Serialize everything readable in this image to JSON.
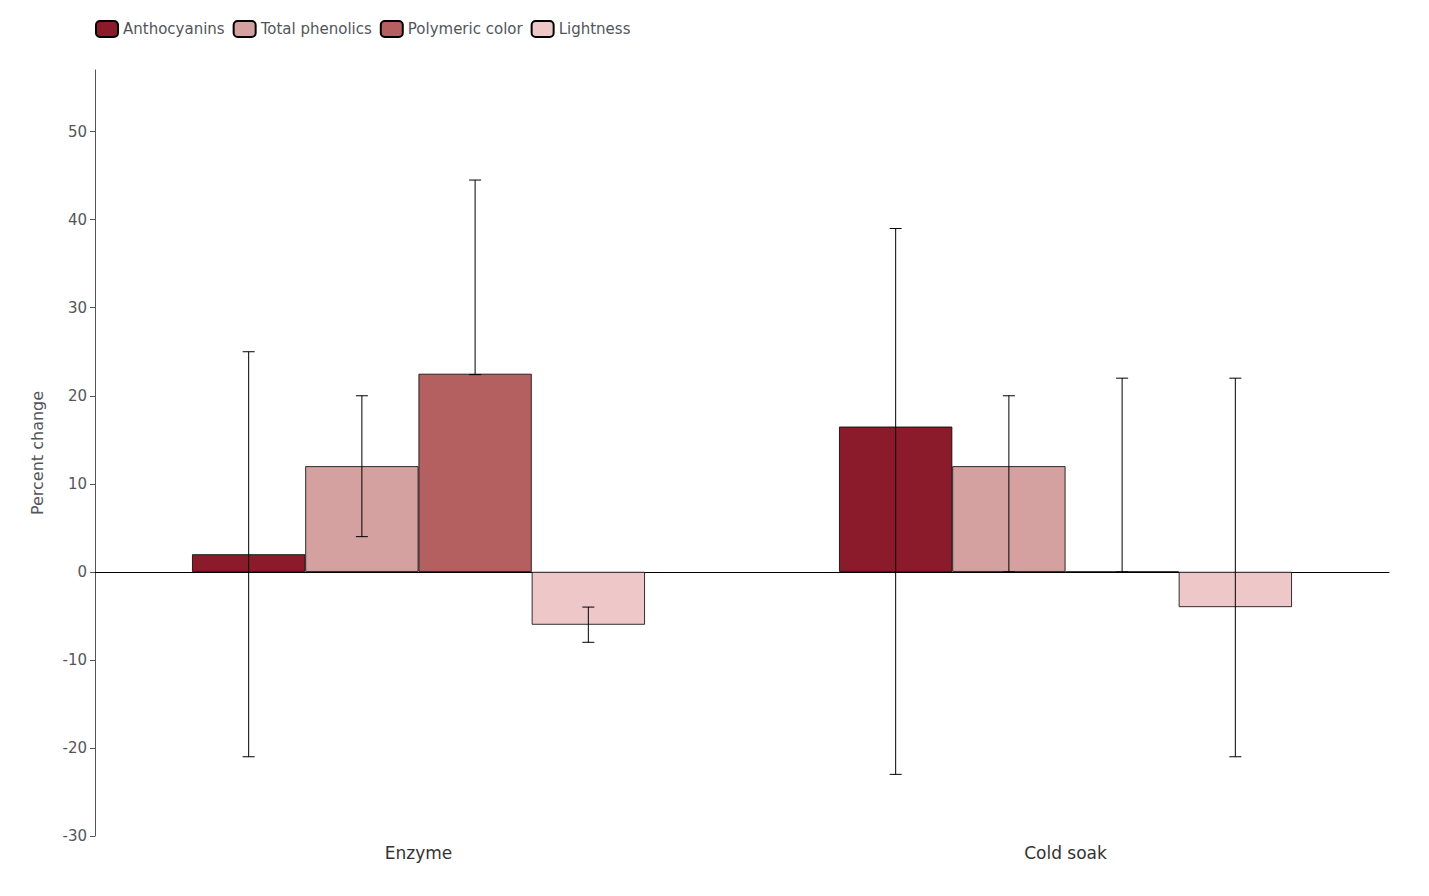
{
  "chart_data": {
    "type": "bar",
    "categories": [
      "Enzyme",
      "Cold soak"
    ],
    "series": [
      {
        "name": "Anthocyanins",
        "color": "#8B1A2A",
        "values": [
          2.0,
          16.5
        ],
        "errors_neg": [
          23.0,
          39.5
        ],
        "errors_pos": [
          23.0,
          22.5
        ]
      },
      {
        "name": "Total phenolics",
        "color": "#D4A0A0",
        "values": [
          12.0,
          12.0
        ],
        "errors_neg": [
          8.0,
          12.0
        ],
        "errors_pos": [
          8.0,
          8.0
        ]
      },
      {
        "name": "Polymeric color",
        "color": "#B56060",
        "values": [
          22.5,
          0.0
        ],
        "errors_neg": [
          0.1,
          0.0
        ],
        "errors_pos": [
          22.0,
          22.0
        ]
      },
      {
        "name": "Lightness",
        "color": "#EEC8C8",
        "values": [
          -6.0,
          -4.0
        ],
        "errors_neg": [
          2.0,
          17.0
        ],
        "errors_pos": [
          2.0,
          26.0
        ]
      }
    ],
    "ylabel": "Percent change",
    "ylim": [
      -30,
      57
    ],
    "yticks": [
      -30,
      -20,
      -10,
      0,
      10,
      20,
      30,
      40,
      50
    ],
    "grid": false,
    "legend": "upper left"
  }
}
